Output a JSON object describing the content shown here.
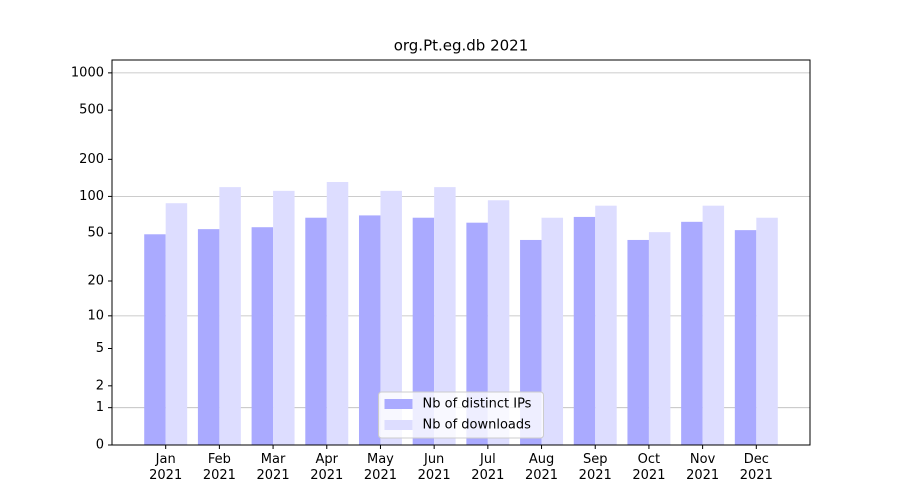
{
  "chart_data": {
    "type": "bar",
    "title": "org.Pt.eg.db 2021",
    "categories": [
      "Jan\n2021",
      "Feb\n2021",
      "Mar\n2021",
      "Apr\n2021",
      "May\n2021",
      "Jun\n2021",
      "Jul\n2021",
      "Aug\n2021",
      "Sep\n2021",
      "Oct\n2021",
      "Nov\n2021",
      "Dec\n2021"
    ],
    "series": [
      {
        "name": "Nb of distinct IPs",
        "color": "#aaaaff",
        "values": [
          49,
          54,
          56,
          67,
          70,
          67,
          61,
          44,
          68,
          44,
          62,
          53
        ]
      },
      {
        "name": "Nb of downloads",
        "color": "#ddddff",
        "values": [
          88,
          119,
          111,
          131,
          111,
          119,
          93,
          67,
          84,
          51,
          84,
          67
        ]
      }
    ],
    "y_scale": "log1p",
    "ylim": [
      0,
      1270
    ],
    "yticks": [
      0,
      1,
      2,
      5,
      10,
      20,
      50,
      100,
      200,
      500,
      1000
    ],
    "grid": true,
    "legend": "lower center"
  }
}
